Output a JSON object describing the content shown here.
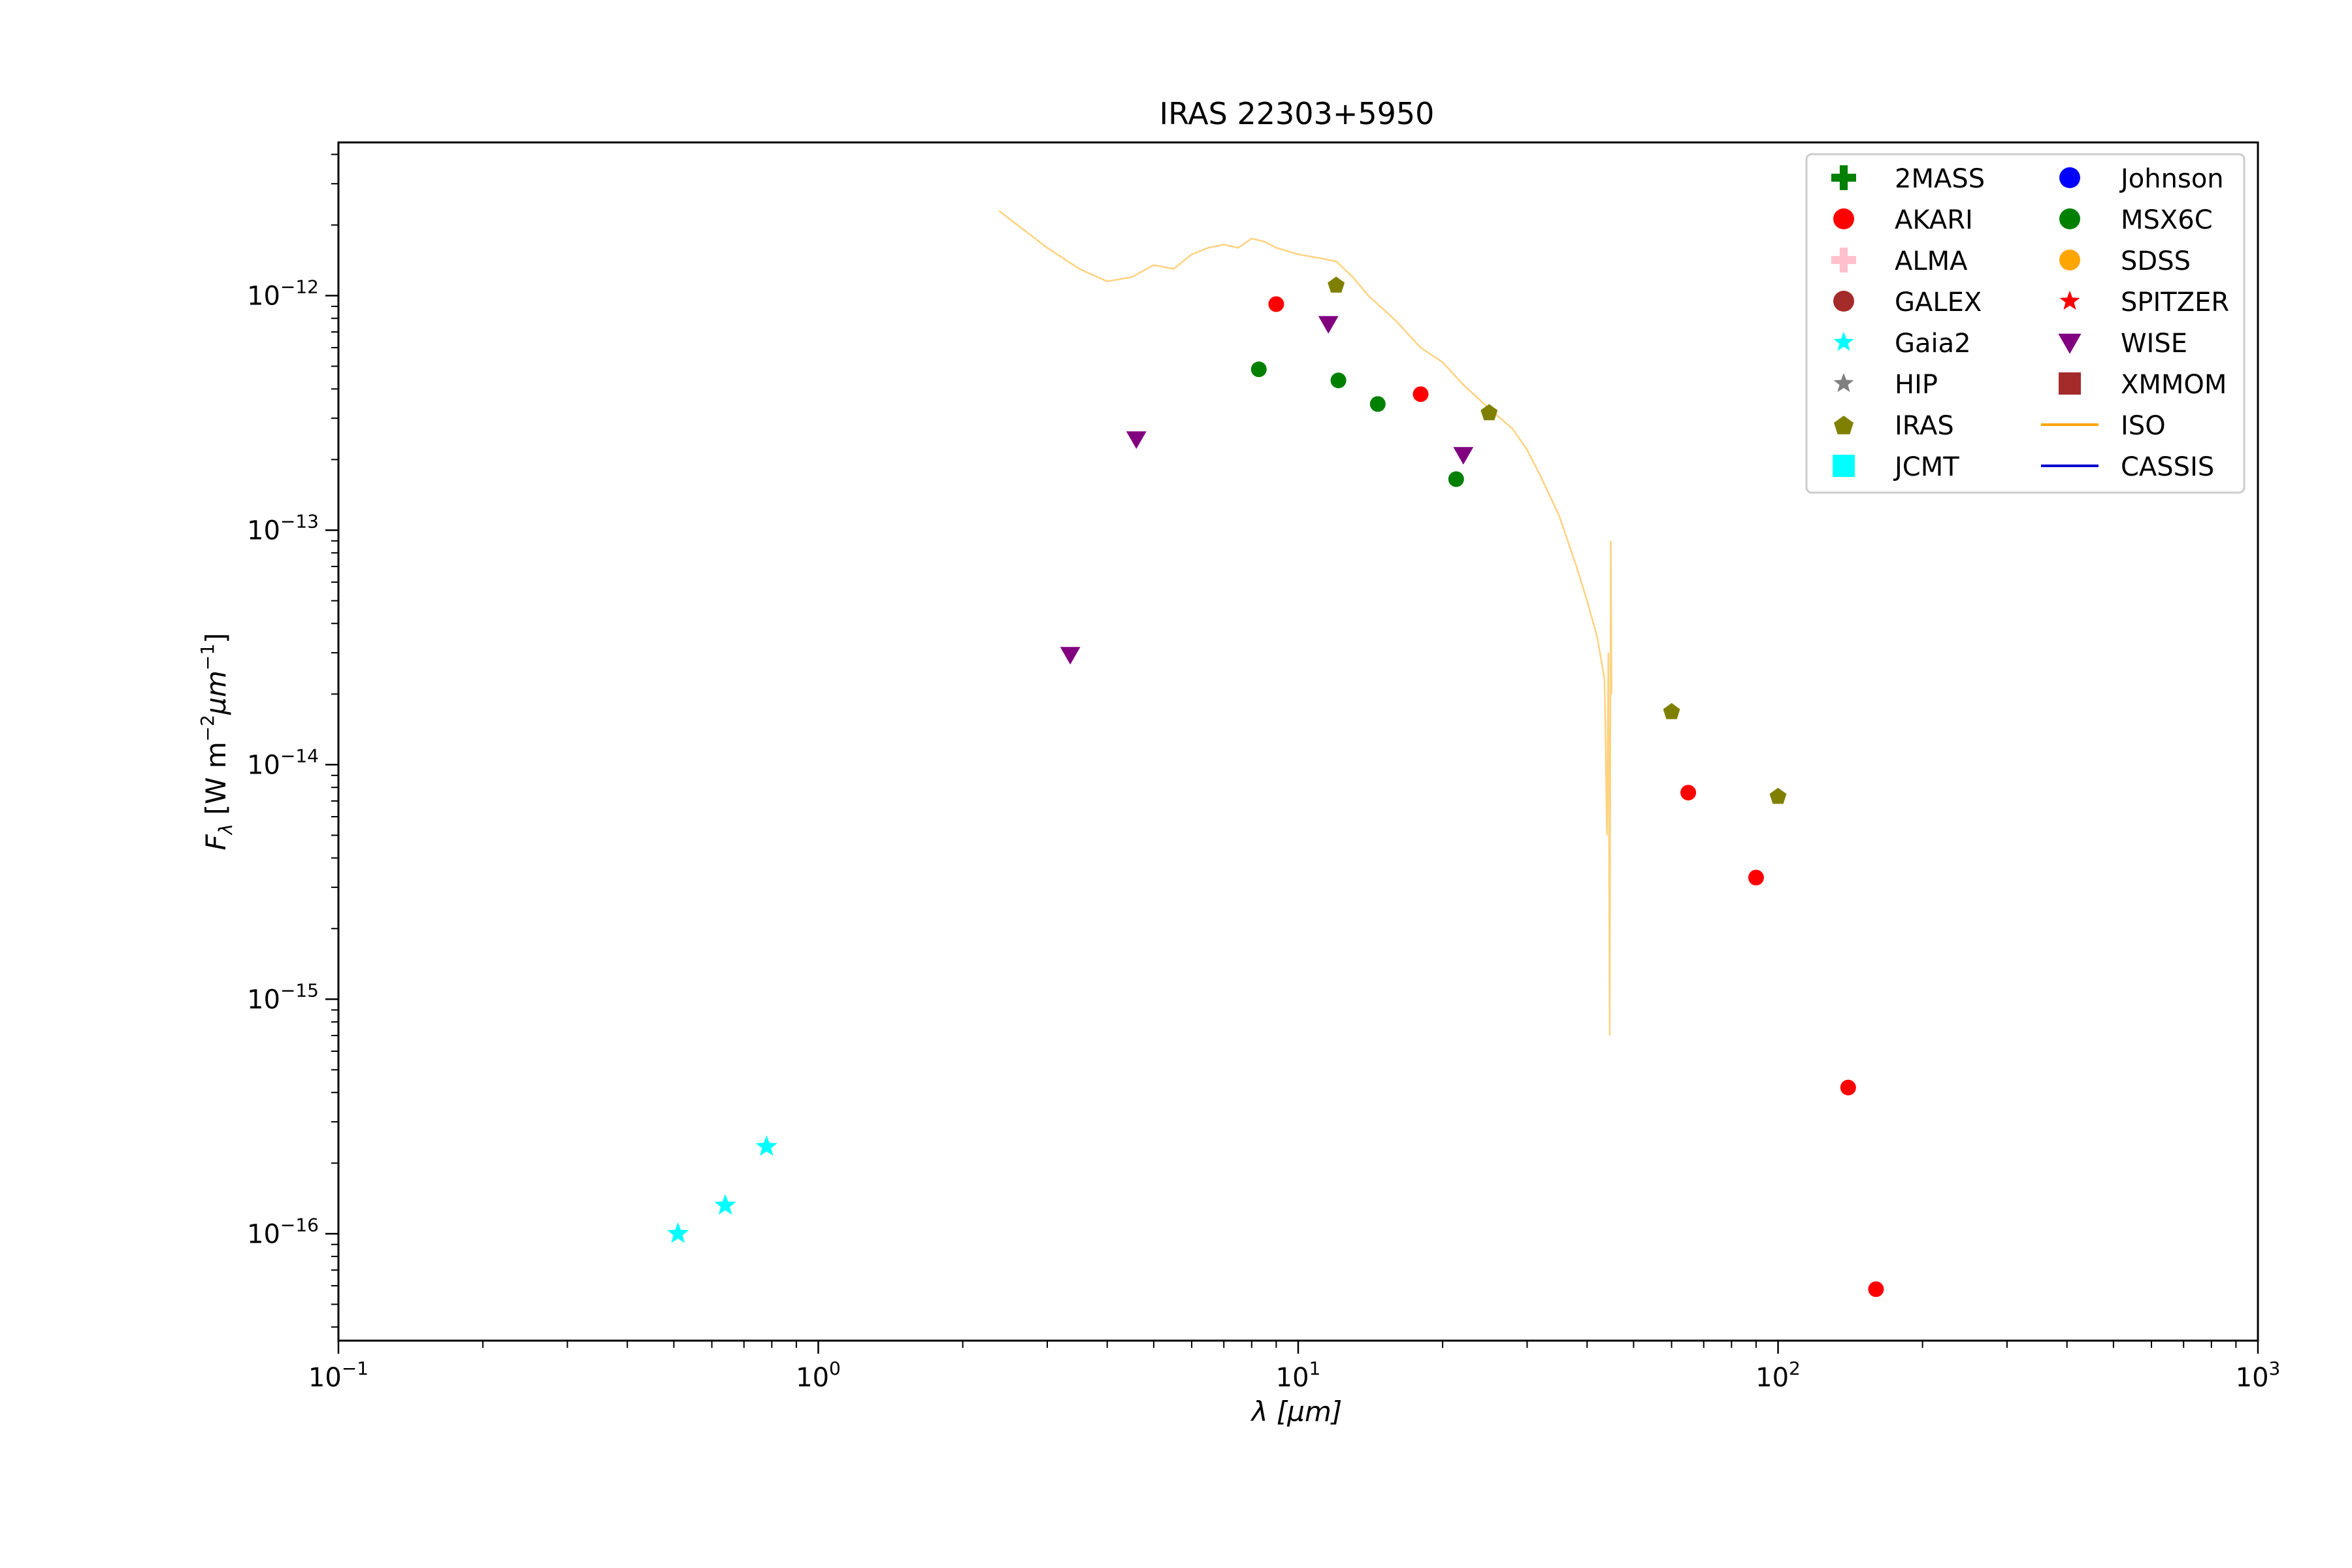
{
  "chart_data": {
    "type": "scatter",
    "title": "IRAS 22303+5950",
    "xlabel": "λ [μm]",
    "ylabel": "F_λ [W m^-2 μm^-1]",
    "x_scale": "log",
    "y_scale": "log",
    "xlim": [
      0.1,
      1000
    ],
    "ylim": [
      3.5e-17,
      4.5e-12
    ],
    "x_ticks": [
      {
        "base": "10",
        "exp": "−1"
      },
      {
        "base": "10",
        "exp": "0"
      },
      {
        "base": "10",
        "exp": "1"
      },
      {
        "base": "10",
        "exp": "2"
      },
      {
        "base": "10",
        "exp": "3"
      }
    ],
    "y_ticks": [
      {
        "base": "10",
        "exp": "−16"
      },
      {
        "base": "10",
        "exp": "−15"
      },
      {
        "base": "10",
        "exp": "−14"
      },
      {
        "base": "10",
        "exp": "−13"
      },
      {
        "base": "10",
        "exp": "−12"
      }
    ],
    "grid": false,
    "legend_position": "top-right",
    "legend": [
      {
        "name": "2MASS",
        "marker": "plus",
        "color": "#008000"
      },
      {
        "name": "AKARI",
        "marker": "circle",
        "color": "#ff0000"
      },
      {
        "name": "ALMA",
        "marker": "plus",
        "color": "#ffc0cb"
      },
      {
        "name": "GALEX",
        "marker": "circle",
        "color": "#a52a2a"
      },
      {
        "name": "Gaia2",
        "marker": "star",
        "color": "#00ffff"
      },
      {
        "name": "HIP",
        "marker": "star",
        "color": "#808080"
      },
      {
        "name": "IRAS",
        "marker": "pentagon",
        "color": "#808000"
      },
      {
        "name": "JCMT",
        "marker": "square",
        "color": "#00ffff"
      },
      {
        "name": "Johnson",
        "marker": "circle",
        "color": "#0000ff"
      },
      {
        "name": "MSX6C",
        "marker": "circle",
        "color": "#008000"
      },
      {
        "name": "SDSS",
        "marker": "circle",
        "color": "#ffa500"
      },
      {
        "name": "SPITZER",
        "marker": "star",
        "color": "#ff0000"
      },
      {
        "name": "WISE",
        "marker": "triangle-down",
        "color": "#800080"
      },
      {
        "name": "XMMOM",
        "marker": "square",
        "color": "#a52a2a"
      },
      {
        "name": "ISO",
        "marker": "line",
        "color": "#ffa500"
      },
      {
        "name": "CASSIS",
        "marker": "line",
        "color": "#0000cd"
      }
    ],
    "series": [
      {
        "name": "AKARI",
        "marker": "circle",
        "color": "#ff0000",
        "points": [
          [
            9.0,
            9.2e-13
          ],
          [
            18.0,
            3.8e-13
          ],
          [
            65.0,
            7.6e-15
          ],
          [
            90.0,
            3.3e-15
          ],
          [
            140.0,
            4.2e-16
          ],
          [
            160.0,
            5.8e-17
          ]
        ]
      },
      {
        "name": "Gaia2",
        "marker": "star",
        "color": "#00ffff",
        "points": [
          [
            0.51,
            1e-16
          ],
          [
            0.64,
            1.32e-16
          ],
          [
            0.78,
            2.35e-16
          ]
        ]
      },
      {
        "name": "IRAS",
        "marker": "pentagon",
        "color": "#808000",
        "points": [
          [
            12.0,
            1.12e-12
          ],
          [
            25.0,
            3.2e-13
          ],
          [
            60.0,
            1.7e-14
          ],
          [
            100.0,
            7.4e-15
          ]
        ]
      },
      {
        "name": "MSX6C",
        "marker": "circle",
        "color": "#008000",
        "points": [
          [
            8.28,
            4.85e-13
          ],
          [
            12.13,
            4.35e-13
          ],
          [
            14.65,
            3.45e-13
          ],
          [
            21.34,
            1.65e-13
          ]
        ]
      },
      {
        "name": "WISE",
        "marker": "triangle-down",
        "color": "#800080",
        "points": [
          [
            3.35,
            2.95e-14
          ],
          [
            4.6,
            2.45e-13
          ],
          [
            11.56,
            7.6e-13
          ],
          [
            22.09,
            2.1e-13
          ]
        ]
      },
      {
        "name": "ISO",
        "type": "line",
        "color": "#ffa500",
        "alpha": 0.5,
        "points": [
          [
            2.38,
            2.3e-12
          ],
          [
            2.6,
            2e-12
          ],
          [
            3.0,
            1.6e-12
          ],
          [
            3.5,
            1.3e-12
          ],
          [
            4.0,
            1.15e-12
          ],
          [
            4.5,
            1.2e-12
          ],
          [
            5.0,
            1.35e-12
          ],
          [
            5.5,
            1.3e-12
          ],
          [
            6.0,
            1.5e-12
          ],
          [
            6.5,
            1.6e-12
          ],
          [
            7.0,
            1.65e-12
          ],
          [
            7.5,
            1.6e-12
          ],
          [
            8.0,
            1.75e-12
          ],
          [
            8.5,
            1.7e-12
          ],
          [
            9.0,
            1.6e-12
          ],
          [
            10.0,
            1.5e-12
          ],
          [
            11.0,
            1.45e-12
          ],
          [
            12.0,
            1.4e-12
          ],
          [
            13.0,
            1.2e-12
          ],
          [
            14.0,
            1e-12
          ],
          [
            15.0,
            8.8e-13
          ],
          [
            16.0,
            7.8e-13
          ],
          [
            17.0,
            6.8e-13
          ],
          [
            18.0,
            6e-13
          ],
          [
            20.0,
            5.2e-13
          ],
          [
            22.0,
            4.2e-13
          ],
          [
            25.0,
            3.3e-13
          ],
          [
            28.0,
            2.7e-13
          ],
          [
            30.0,
            2.2e-13
          ],
          [
            32.0,
            1.7e-13
          ],
          [
            35.0,
            1.15e-13
          ],
          [
            38.0,
            7e-14
          ],
          [
            40.0,
            5e-14
          ],
          [
            42.0,
            3.5e-14
          ],
          [
            43.5,
            2.3e-14
          ],
          [
            44.0,
            5e-15
          ],
          [
            44.3,
            3e-14
          ],
          [
            44.6,
            7e-16
          ],
          [
            44.8,
            9e-14
          ],
          [
            45.0,
            2e-14
          ]
        ]
      }
    ]
  }
}
